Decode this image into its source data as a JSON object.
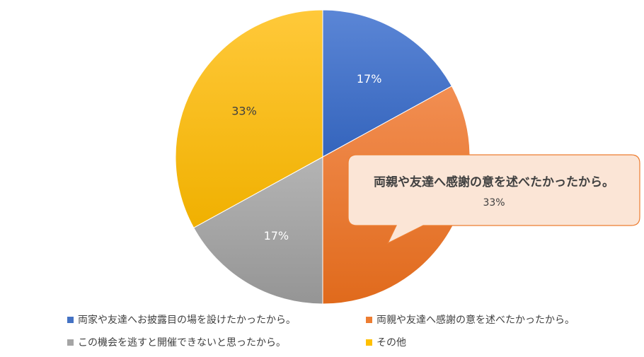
{
  "chart_data": {
    "type": "pie",
    "categories": [
      "両家や友達へお披露目の場を設けたかったから。",
      "両親や友達へ感謝の意を述べたかったから。",
      "この機会を逃すと開催できないと思ったから。",
      "その他"
    ],
    "values": [
      17,
      33,
      17,
      33
    ],
    "value_labels": [
      "17%",
      "33%",
      "17%",
      "33%"
    ],
    "colors": [
      "#4472C4",
      "#ED7D31",
      "#A5A5A5",
      "#FFC000"
    ],
    "legend_position": "bottom",
    "callout": {
      "category_index": 1,
      "text": "両親や友達へ感謝の意を述べたかったから。",
      "value": "33%"
    }
  }
}
